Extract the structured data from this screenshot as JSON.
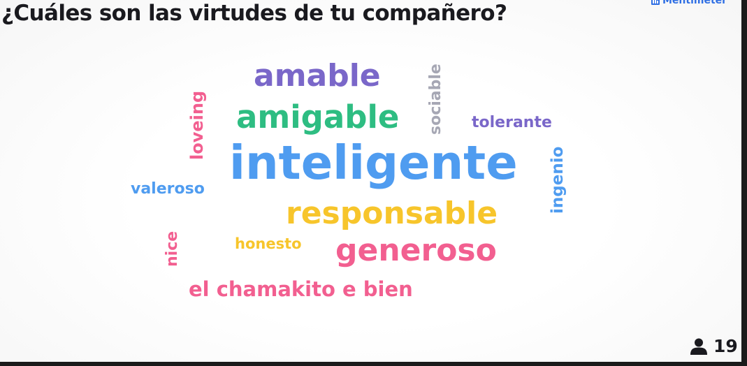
{
  "question": "¿Cuáles son las virtudes de tu compañero?",
  "brand": {
    "name": "Mentimeter",
    "icon": "mentimeter-logo-icon",
    "color": "#2f6fe4"
  },
  "words": {
    "amable": {
      "text": "amable",
      "color": "#7a67c9"
    },
    "amigable": {
      "text": "amigable",
      "color": "#2ebd82"
    },
    "sociable": {
      "text": "sociable",
      "color": "#a6a7b4"
    },
    "tolerante": {
      "text": "tolerante",
      "color": "#7a67c9"
    },
    "loveing": {
      "text": "loveing",
      "color": "#f25f90"
    },
    "inteligente": {
      "text": "inteligente",
      "color": "#4f9cf0"
    },
    "ingenio": {
      "text": "ingenio",
      "color": "#4f9cf0"
    },
    "valeroso": {
      "text": "valeroso",
      "color": "#4f9cf0"
    },
    "responsable": {
      "text": "responsable",
      "color": "#f7c52b"
    },
    "nice": {
      "text": "nice",
      "color": "#f25f90"
    },
    "honesto": {
      "text": "honesto",
      "color": "#f7c52b"
    },
    "generoso": {
      "text": "generoso",
      "color": "#f25f90"
    },
    "el_chamakito": {
      "text": "el chamakito e bien",
      "color": "#f25f90"
    }
  },
  "participants": {
    "count": "19",
    "icon": "user-icon"
  }
}
